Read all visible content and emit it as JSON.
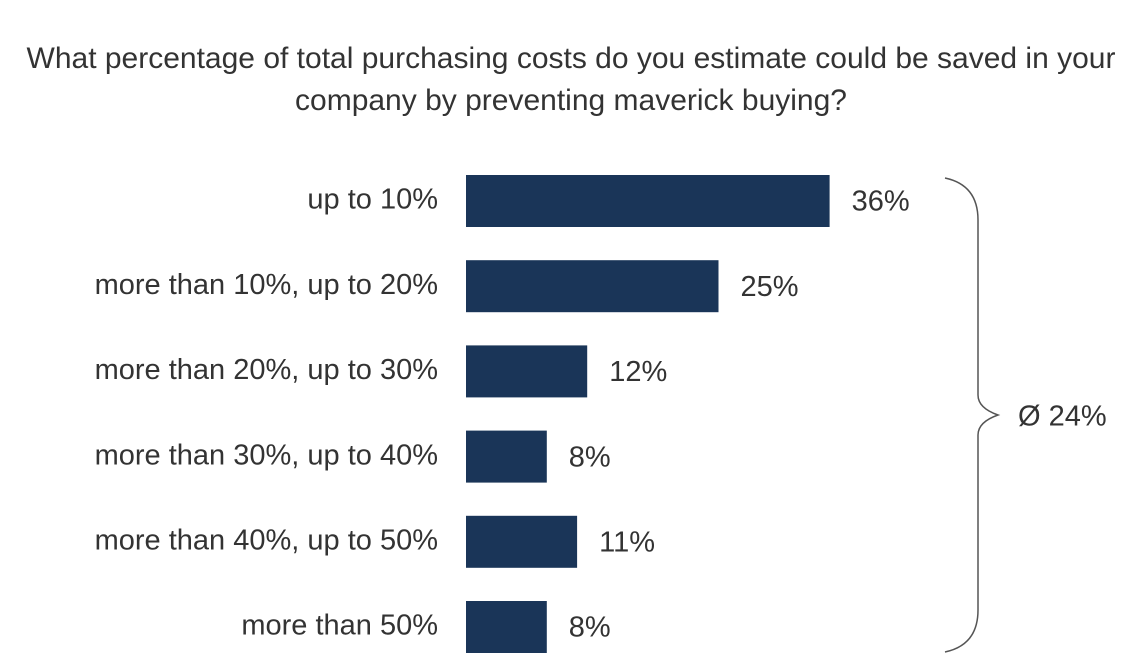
{
  "chart_data": {
    "type": "bar",
    "orientation": "horizontal",
    "title": "What percentage of total purchasing costs do you estimate could be saved in your company by preventing maverick buying?",
    "categories": [
      "up to 10%",
      "more than 10%, up to 20%",
      "more than 20%, up to 30%",
      "more than 30%, up to 40%",
      "more than 40%, up to 50%",
      "more than 50%"
    ],
    "values": [
      36,
      25,
      12,
      8,
      11,
      8
    ],
    "value_labels": [
      "36%",
      "25%",
      "12%",
      "8%",
      "11%",
      "8%"
    ],
    "color": "#1a3558",
    "annotation": "Ø 24%"
  }
}
